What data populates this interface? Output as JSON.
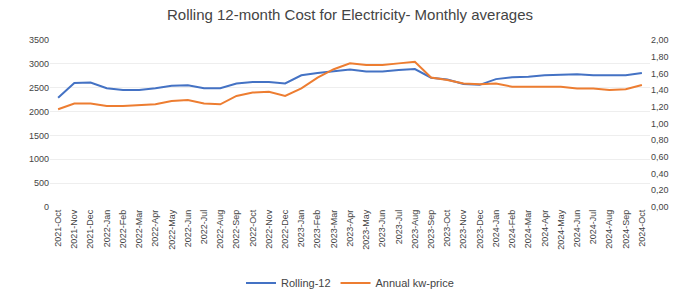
{
  "chart_data": {
    "type": "line",
    "title": "Rolling 12-month Cost for Electricity- Monthly averages",
    "categories": [
      "2021-Oct",
      "2021-Nov",
      "2021-Dec",
      "2022-Jan",
      "2022-Feb",
      "2022-Mar",
      "2022-Apr",
      "2022-May",
      "2022-Jun",
      "2022-Jul",
      "2022-Aug",
      "2022-Sep",
      "2022-Oct",
      "2022-Nov",
      "2022-Dec",
      "2023-Jan",
      "2023-Feb",
      "2023-Mar",
      "2023-Apr",
      "2023-May",
      "2023-Jun",
      "2023-Jul",
      "2023-Aug",
      "2023-Sep",
      "2023-Oct",
      "2023-Nov",
      "2023-Dec",
      "2024-Jan",
      "2024-Feb",
      "2024-Mar",
      "2024-Apr",
      "2024-May",
      "2024-Jun",
      "2024-Jul",
      "2024-Aug",
      "2024-Sep",
      "2024-Oct"
    ],
    "series": [
      {
        "name": "Rolling-12",
        "color": "#4472C4",
        "values": [
          2290,
          2600,
          2610,
          2490,
          2450,
          2450,
          2490,
          2540,
          2550,
          2490,
          2490,
          2590,
          2620,
          2620,
          2590,
          2760,
          2810,
          2850,
          2880,
          2840,
          2840,
          2870,
          2890,
          2710,
          2670,
          2580,
          2560,
          2680,
          2720,
          2730,
          2760,
          2770,
          2780,
          2760,
          2760,
          2760,
          2810
        ]
      },
      {
        "name": "Annual kw-price",
        "color": "#ED7D31",
        "axis": "y2",
        "values": [
          1.17,
          1.24,
          1.24,
          1.21,
          1.21,
          1.22,
          1.23,
          1.27,
          1.28,
          1.24,
          1.23,
          1.33,
          1.37,
          1.38,
          1.33,
          1.42,
          1.55,
          1.65,
          1.72,
          1.7,
          1.7,
          1.72,
          1.74,
          1.55,
          1.52,
          1.48,
          1.47,
          1.48,
          1.44,
          1.44,
          1.44,
          1.44,
          1.42,
          1.42,
          1.4,
          1.41,
          1.46
        ]
      }
    ],
    "ylim": [
      0,
      3500
    ],
    "yticks": [
      0,
      500,
      1000,
      1500,
      2000,
      2500,
      3000,
      3500
    ],
    "y2lim": [
      0,
      2.0
    ],
    "y2ticks": [
      {
        "value": 0.0,
        "label": "0,00"
      },
      {
        "value": 0.2,
        "label": "0,20"
      },
      {
        "value": 0.4,
        "label": "0,40"
      },
      {
        "value": 0.6,
        "label": "0,60"
      },
      {
        "value": 0.8,
        "label": "0,80"
      },
      {
        "value": 1.0,
        "label": "1,00"
      },
      {
        "value": 1.2,
        "label": "1,20"
      },
      {
        "value": 1.4,
        "label": "1,40"
      },
      {
        "value": 1.6,
        "label": "1,60"
      },
      {
        "value": 1.8,
        "label": "1,80"
      },
      {
        "value": 2.0,
        "label": "2,00"
      }
    ],
    "grid": true,
    "legend": "bottom"
  }
}
